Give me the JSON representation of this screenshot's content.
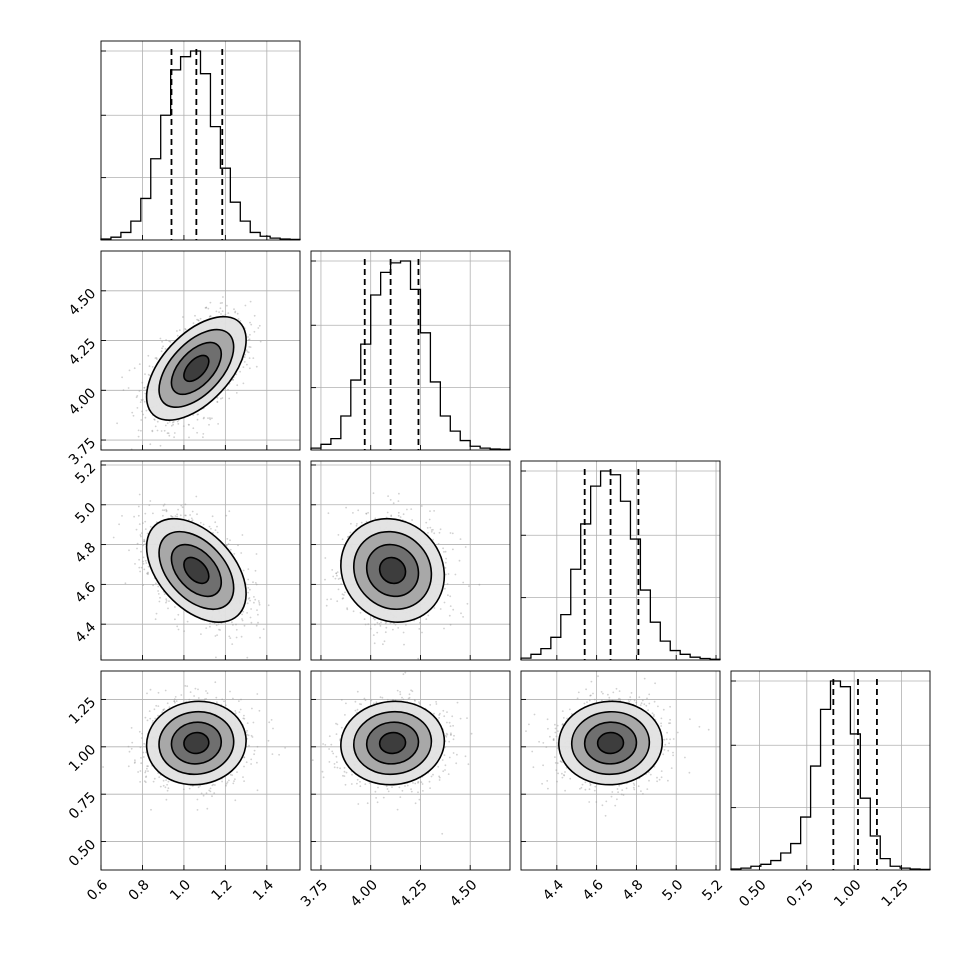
{
  "chart_data": {
    "type": "corner",
    "grid": true,
    "colors": {
      "hist": "#000000",
      "contour": "#000000",
      "points": "#9a9a9a",
      "density_dark": "#000000",
      "grid": "#b0b0b0"
    },
    "parameters": [
      {
        "range": [
          0.6,
          1.56
        ],
        "ticks": [
          0.6,
          0.8,
          1.0,
          1.2,
          1.4
        ],
        "tick_labels": [
          "0.6",
          "0.8",
          "1.0",
          "1.2",
          "1.4"
        ],
        "quantiles": [
          0.94,
          1.06,
          1.185
        ],
        "histogram": [
          0.005,
          0.015,
          0.04,
          0.1,
          0.22,
          0.43,
          0.66,
          0.9,
          0.97,
          1.0,
          0.88,
          0.6,
          0.38,
          0.2,
          0.1,
          0.04,
          0.02,
          0.01,
          0.005,
          0.003
        ]
      },
      {
        "range": [
          3.7,
          4.7
        ],
        "ticks": [
          3.75,
          4.0,
          4.25,
          4.5
        ],
        "tick_labels": [
          "3.75",
          "4.00",
          "4.25",
          "4.50"
        ],
        "quantiles": [
          3.97,
          4.1,
          4.24
        ],
        "histogram": [
          0.01,
          0.03,
          0.06,
          0.18,
          0.37,
          0.56,
          0.82,
          0.94,
          0.99,
          1.0,
          0.85,
          0.62,
          0.36,
          0.18,
          0.1,
          0.05,
          0.02,
          0.01,
          0.005,
          0.003
        ]
      },
      {
        "range": [
          4.22,
          5.22
        ],
        "ticks": [
          4.4,
          4.6,
          4.8,
          5.0,
          5.2
        ],
        "tick_labels": [
          "4.4",
          "4.6",
          "4.8",
          "5.0",
          "5.2"
        ],
        "quantiles": [
          4.54,
          4.67,
          4.81
        ],
        "histogram": [
          0.01,
          0.03,
          0.06,
          0.12,
          0.24,
          0.48,
          0.72,
          0.92,
          1.0,
          0.98,
          0.84,
          0.64,
          0.37,
          0.2,
          0.1,
          0.05,
          0.03,
          0.015,
          0.008,
          0.004
        ]
      },
      {
        "range": [
          0.35,
          1.4
        ],
        "ticks": [
          0.5,
          0.75,
          1.0,
          1.25
        ],
        "tick_labels": [
          "0.50",
          "0.75",
          "1.00",
          "1.25"
        ],
        "quantiles": [
          0.89,
          1.02,
          1.12
        ],
        "histogram": [
          0.005,
          0.01,
          0.02,
          0.03,
          0.05,
          0.09,
          0.14,
          0.28,
          0.55,
          0.85,
          1.0,
          0.97,
          0.72,
          0.38,
          0.18,
          0.06,
          0.02,
          0.01,
          0.005,
          0.003
        ]
      }
    ],
    "pairs": [
      {
        "x": 0,
        "y": 1,
        "mean": [
          1.06,
          4.11
        ],
        "sd": [
          0.12,
          0.13
        ],
        "rho": 0.55
      },
      {
        "x": 0,
        "y": 2,
        "mean": [
          1.06,
          4.67
        ],
        "sd": [
          0.12,
          0.13
        ],
        "rho": -0.45
      },
      {
        "x": 1,
        "y": 2,
        "mean": [
          4.11,
          4.67
        ],
        "sd": [
          0.13,
          0.13
        ],
        "rho": -0.1
      },
      {
        "x": 0,
        "y": 3,
        "mean": [
          1.06,
          1.02
        ],
        "sd": [
          0.12,
          0.11
        ],
        "rho": 0.05
      },
      {
        "x": 1,
        "y": 3,
        "mean": [
          4.11,
          1.02
        ],
        "sd": [
          0.13,
          0.11
        ],
        "rho": 0.05
      },
      {
        "x": 2,
        "y": 3,
        "mean": [
          4.67,
          1.02
        ],
        "sd": [
          0.13,
          0.11
        ],
        "rho": 0.02
      }
    ],
    "contour_levels_sigma": [
      0.5,
      1.0,
      1.5,
      2.0
    ]
  }
}
